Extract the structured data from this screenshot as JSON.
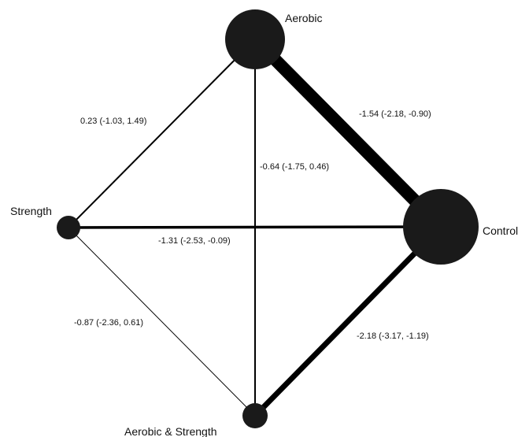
{
  "nodes": {
    "aerobic": {
      "label": "Aerobic"
    },
    "control": {
      "label": "Control"
    },
    "strength": {
      "label": "Strength"
    },
    "aerobic_strength": {
      "label": "Aerobic & Strength"
    }
  },
  "edges": {
    "aerobic_control": {
      "label": "-1.54 (-2.18, -0.90)"
    },
    "aerobic_strength": {
      "label": "0.23 (-1.03, 1.49)"
    },
    "aerobic_aerobicstrength": {
      "label": "-0.64 (-1.75, 0.46)"
    },
    "strength_control": {
      "label": "-1.31 (-2.53, -0.09)"
    },
    "strength_aerobicstrength": {
      "label": "-0.87 (-2.36, 0.61)"
    },
    "aerobicstrength_control": {
      "label": "-2.18 (-3.17, -1.19)"
    }
  },
  "colors": {
    "node_fill": "#1a1a1a",
    "edge_stroke": "#000000",
    "background": "#ffffff"
  }
}
